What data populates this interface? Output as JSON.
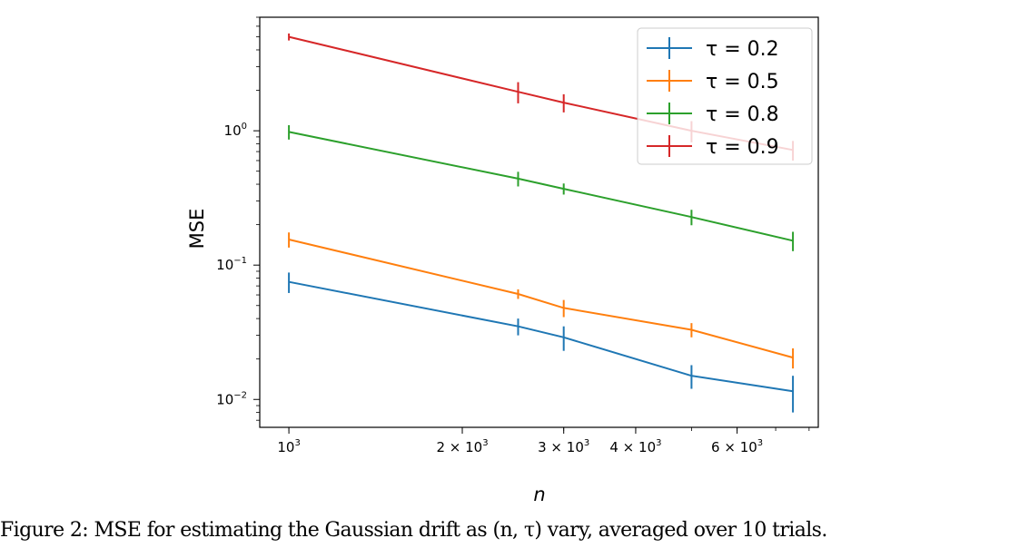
{
  "chart_data": {
    "type": "line",
    "xscale": "log",
    "yscale": "log",
    "xlabel": "n",
    "ylabel": "MSE",
    "xlim": [
      890,
      8300
    ],
    "ylim": [
      0.0062,
      7.0
    ],
    "x": [
      1000,
      2500,
      3000,
      5000,
      7500
    ],
    "x_ticks": [
      {
        "value": 1000,
        "base": "10",
        "exp": "3"
      },
      {
        "value": 2000,
        "base": "2 × 10",
        "exp": "3"
      },
      {
        "value": 3000,
        "base": "3 × 10",
        "exp": "3"
      },
      {
        "value": 4000,
        "base": "4 × 10",
        "exp": "3"
      },
      {
        "value": 6000,
        "base": "6 × 10",
        "exp": "3"
      }
    ],
    "y_ticks": [
      {
        "value": 1.0,
        "base": "10",
        "exp": "0"
      },
      {
        "value": 0.1,
        "base": "10",
        "exp": "−1"
      },
      {
        "value": 0.01,
        "base": "10",
        "exp": "−2"
      }
    ],
    "series": [
      {
        "name": "τ = 0.2",
        "color": "#1f77b4",
        "values": [
          0.075,
          0.035,
          0.029,
          0.015,
          0.0115
        ],
        "errors": [
          0.013,
          0.005,
          0.006,
          0.003,
          0.0035
        ]
      },
      {
        "name": "τ = 0.5",
        "color": "#ff7f0e",
        "values": [
          0.155,
          0.061,
          0.048,
          0.033,
          0.0205
        ],
        "errors": [
          0.02,
          0.005,
          0.007,
          0.004,
          0.0035
        ]
      },
      {
        "name": "τ = 0.8",
        "color": "#2ca02c",
        "values": [
          0.98,
          0.44,
          0.37,
          0.228,
          0.152
        ],
        "errors": [
          0.12,
          0.055,
          0.035,
          0.03,
          0.025
        ]
      },
      {
        "name": "τ = 0.9",
        "color": "#d62728",
        "values": [
          5.0,
          1.95,
          1.62,
          1.0,
          0.72
        ],
        "errors": [
          0.3,
          0.35,
          0.25,
          0.18,
          0.12
        ]
      }
    ],
    "legend_position": "upper-right",
    "grid": false
  },
  "caption": "Figure 2: MSE for estimating the Gaussian drift as (n, τ) vary, averaged over 10 trials."
}
